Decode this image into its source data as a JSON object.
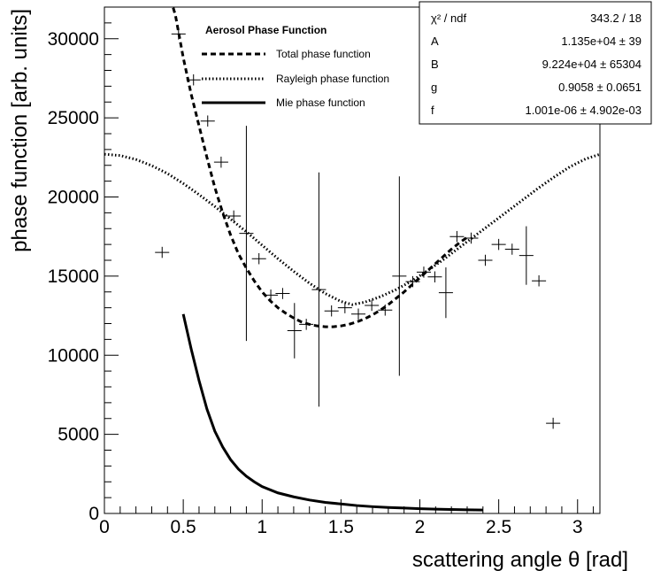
{
  "chart_data": {
    "type": "scatter",
    "xlabel": "scattering angle θ [rad]",
    "ylabel": "phase function [arb. units]",
    "xlim": [
      0,
      3.1416
    ],
    "ylim": [
      0,
      32000
    ],
    "x_ticks": [
      0,
      0.5,
      1,
      1.5,
      2,
      2.5,
      3
    ],
    "x_tick_labels": [
      "0",
      "0.5",
      "1",
      "1.5",
      "2",
      "2.5",
      "3"
    ],
    "y_ticks": [
      0,
      5000,
      10000,
      15000,
      20000,
      25000,
      30000
    ],
    "y_tick_labels": [
      "0",
      "5000",
      "10000",
      "15000",
      "20000",
      "25000",
      "30000"
    ],
    "grid": false,
    "legend": {
      "title": "Aerosol Phase Function",
      "placement": "top-center",
      "entries": [
        {
          "label": "Total phase function",
          "style": "dashed"
        },
        {
          "label": "Rayleigh phase function",
          "style": "dotted"
        },
        {
          "label": "Mie phase function",
          "style": "solid"
        }
      ]
    },
    "stats_box": {
      "placement": "top-right",
      "rows": [
        {
          "name": "χ² / ndf",
          "value": "343.2 / 18"
        },
        {
          "name": "A",
          "value": "1.135e+04 ± 39"
        },
        {
          "name": "B",
          "value": "9.224e+04 ± 65304"
        },
        {
          "name": "g",
          "value": "0.9058 ± 0.0651"
        },
        {
          "name": "f",
          "value": "1.001e-06 ± 4.902e-03"
        }
      ]
    },
    "series": [
      {
        "kind": "points",
        "points": [
          {
            "x": 0.366,
            "y": 16500,
            "xerr": 0.045,
            "yerr": 0
          },
          {
            "x": 0.47,
            "y": 30300,
            "xerr": 0.045,
            "yerr": 0
          },
          {
            "x": 0.565,
            "y": 27400,
            "xerr": 0.045,
            "yerr": 0
          },
          {
            "x": 0.655,
            "y": 24800,
            "xerr": 0.045,
            "yerr": 0
          },
          {
            "x": 0.74,
            "y": 22200,
            "xerr": 0.045,
            "yerr": 0
          },
          {
            "x": 0.82,
            "y": 18800,
            "xerr": 0.045,
            "yerr": 0
          },
          {
            "x": 0.9,
            "y": 17700,
            "xerr": 0.045,
            "yerr": 6800
          },
          {
            "x": 0.98,
            "y": 16100,
            "xerr": 0.045,
            "yerr": 0
          },
          {
            "x": 1.055,
            "y": 13800,
            "xerr": 0.045,
            "yerr": 0
          },
          {
            "x": 1.13,
            "y": 13900,
            "xerr": 0.045,
            "yerr": 0
          },
          {
            "x": 1.205,
            "y": 11550,
            "xerr": 0.045,
            "yerr": 1750
          },
          {
            "x": 1.28,
            "y": 11950,
            "xerr": 0.045,
            "yerr": 0
          },
          {
            "x": 1.36,
            "y": 14150,
            "xerr": 0.045,
            "yerr": 7400
          },
          {
            "x": 1.44,
            "y": 12800,
            "xerr": 0.045,
            "yerr": 0
          },
          {
            "x": 1.525,
            "y": 13000,
            "xerr": 0.045,
            "yerr": 0
          },
          {
            "x": 1.61,
            "y": 12600,
            "xerr": 0.045,
            "yerr": 0
          },
          {
            "x": 1.695,
            "y": 13150,
            "xerr": 0.045,
            "yerr": 0
          },
          {
            "x": 1.78,
            "y": 12850,
            "xerr": 0.045,
            "yerr": 0
          },
          {
            "x": 1.87,
            "y": 15000,
            "xerr": 0.045,
            "yerr": 6300
          },
          {
            "x": 1.955,
            "y": 14650,
            "xerr": 0.045,
            "yerr": 0
          },
          {
            "x": 2.025,
            "y": 15250,
            "xerr": 0.045,
            "yerr": 0
          },
          {
            "x": 2.095,
            "y": 14950,
            "xerr": 0.045,
            "yerr": 0
          },
          {
            "x": 2.165,
            "y": 13950,
            "xerr": 0.045,
            "yerr": 1600
          },
          {
            "x": 2.235,
            "y": 17500,
            "xerr": 0.045,
            "yerr": 0
          },
          {
            "x": 2.325,
            "y": 17400,
            "xerr": 0.045,
            "yerr": 0
          },
          {
            "x": 2.415,
            "y": 16000,
            "xerr": 0.045,
            "yerr": 0
          },
          {
            "x": 2.5,
            "y": 17000,
            "xerr": 0.045,
            "yerr": 0
          },
          {
            "x": 2.585,
            "y": 16700,
            "xerr": 0.045,
            "yerr": 0
          },
          {
            "x": 2.675,
            "y": 16300,
            "xerr": 0.045,
            "yerr": 1850
          },
          {
            "x": 2.755,
            "y": 14700,
            "xerr": 0.045,
            "yerr": 0
          },
          {
            "x": 2.845,
            "y": 5700,
            "xerr": 0.045,
            "yerr": 0
          }
        ]
      },
      {
        "kind": "curve",
        "style": "dashed",
        "legend": "Total phase function",
        "x": [
          0.42,
          0.45,
          0.5,
          0.55,
          0.6,
          0.65,
          0.7,
          0.75,
          0.8,
          0.85,
          0.9,
          0.95,
          1.0,
          1.05,
          1.1,
          1.15,
          1.2,
          1.25,
          1.3,
          1.35,
          1.4,
          1.45,
          1.5,
          1.55,
          1.6,
          1.65,
          1.7,
          1.75,
          1.8,
          1.85,
          1.9,
          1.95,
          2.0,
          2.05,
          2.1,
          2.15,
          2.2,
          2.25,
          2.3
        ],
        "y": [
          32500,
          31500,
          28800,
          26500,
          24500,
          22500,
          20600,
          19000,
          17600,
          16400,
          15500,
          14700,
          14000,
          13450,
          13000,
          12650,
          12350,
          12100,
          11950,
          11850,
          11800,
          11800,
          11850,
          11950,
          12100,
          12300,
          12550,
          12850,
          13200,
          13600,
          14000,
          14450,
          14900,
          15350,
          15800,
          16250,
          16700,
          17100,
          17450
        ]
      },
      {
        "kind": "curve",
        "style": "dotted",
        "legend": "Rayleigh phase function",
        "x": [
          0,
          0.1,
          0.2,
          0.3,
          0.4,
          0.5,
          0.6,
          0.7,
          0.8,
          0.9,
          1.0,
          1.1,
          1.2,
          1.3,
          1.4,
          1.5,
          1.571,
          1.65,
          1.75,
          1.85,
          1.95,
          2.05,
          2.15,
          2.25,
          2.35,
          2.45,
          2.55,
          2.65,
          2.75,
          2.85,
          2.95,
          3.05,
          3.1416
        ],
        "y": [
          22700,
          22620,
          22370,
          21980,
          21480,
          20850,
          20150,
          19400,
          18600,
          17800,
          16950,
          16100,
          15300,
          14550,
          13900,
          13400,
          13200,
          13350,
          13700,
          14150,
          14700,
          15350,
          16050,
          16800,
          17550,
          18300,
          19050,
          19800,
          20550,
          21250,
          21900,
          22400,
          22700
        ]
      },
      {
        "kind": "curve",
        "style": "solid",
        "legend": "Mie phase function",
        "x": [
          0.5,
          0.55,
          0.6,
          0.65,
          0.7,
          0.75,
          0.8,
          0.85,
          0.9,
          0.95,
          1.0,
          1.1,
          1.2,
          1.3,
          1.4,
          1.5,
          1.6,
          1.7,
          1.8,
          1.9,
          2.0,
          2.1,
          2.2,
          2.3,
          2.4
        ],
        "y": [
          12600,
          10400,
          8400,
          6600,
          5200,
          4200,
          3400,
          2800,
          2350,
          2000,
          1700,
          1300,
          1050,
          850,
          700,
          600,
          500,
          430,
          380,
          340,
          300,
          270,
          250,
          230,
          220
        ]
      }
    ]
  }
}
